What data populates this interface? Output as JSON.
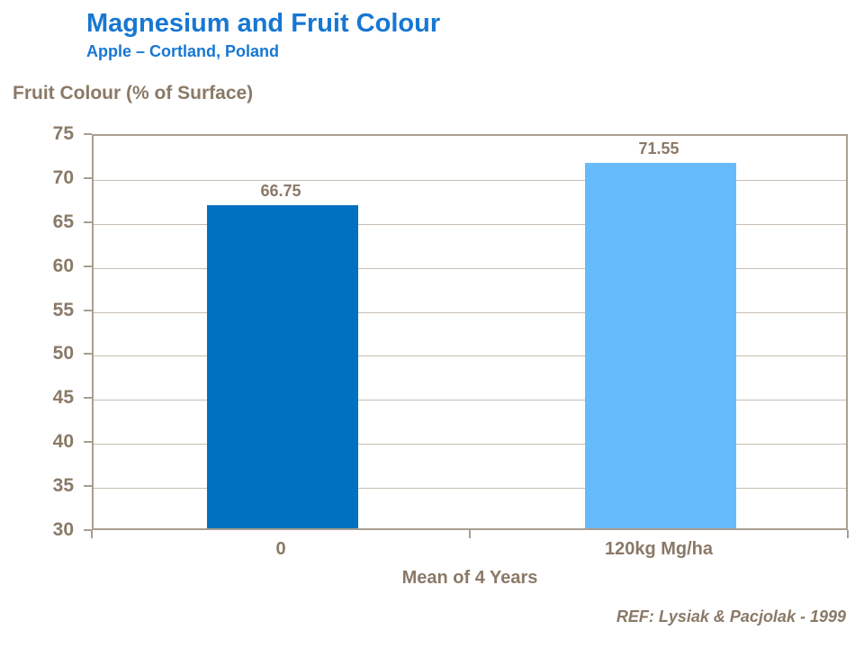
{
  "header": {
    "title": "Magnesium and Fruit Colour",
    "subtitle": "Apple – Cortland, Poland"
  },
  "chart_data": {
    "type": "bar",
    "title": "Magnesium and Fruit Colour",
    "subtitle": "Apple – Cortland, Poland",
    "categories": [
      "0",
      "120kg Mg/ha"
    ],
    "values": [
      66.75,
      71.55
    ],
    "value_labels": [
      "66.75",
      "71.55"
    ],
    "bar_colors": [
      "#0070C0",
      "#66BBFC"
    ],
    "ylabel": "Fruit Colour (% of Surface)",
    "xlabel": "Mean of 4 Years",
    "ylim": [
      30,
      75
    ],
    "yticks": [
      30,
      35,
      40,
      45,
      50,
      55,
      60,
      65,
      70,
      75
    ],
    "grid": "horizontal",
    "legend": "none"
  },
  "footer": {
    "reference": "REF: Lysiak & Pacjolak - 1999"
  },
  "colors": {
    "title_blue": "#1777D2",
    "text_brown": "#8A7967",
    "axis_line": "#A89E90",
    "gridline": "#C7BFB3",
    "bar_dark": "#0070C0",
    "bar_light": "#66BBFC",
    "background": "#FFFFFF"
  }
}
